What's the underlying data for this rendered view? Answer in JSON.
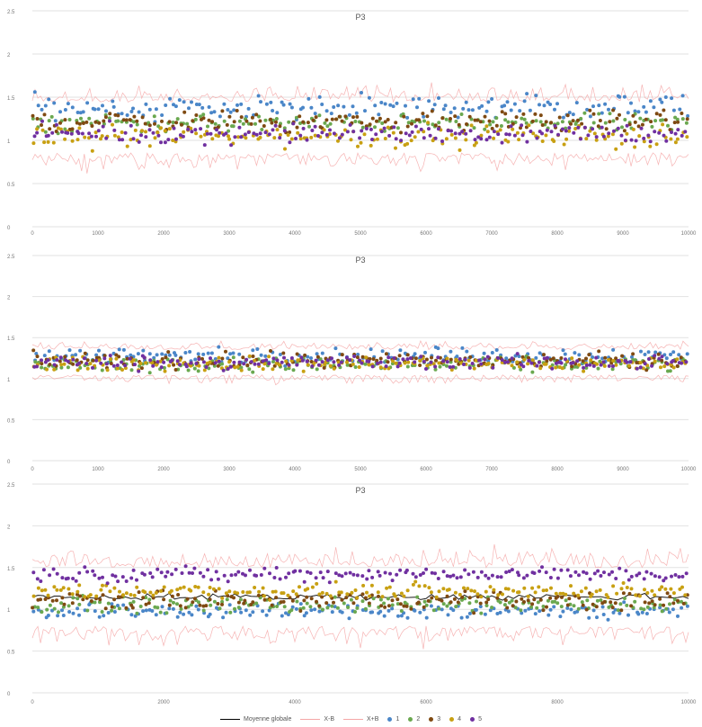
{
  "chart_data": [
    {
      "type": "scatter",
      "title": "P3",
      "ylim": [
        0,
        2.5
      ],
      "xlim": [
        0,
        10000
      ],
      "yticks": [
        "0",
        "0.5",
        "1",
        "1.5",
        "2",
        "2.5"
      ],
      "xticks": [
        "0",
        "1000",
        "2000",
        "3000",
        "4000",
        "5000",
        "6000",
        "7000",
        "8000",
        "9000",
        "10000"
      ],
      "grid": true,
      "series": [
        {
          "name": "X-B",
          "kind": "line",
          "color": "#f4a6a6",
          "center": 1.15,
          "spread": 0.42
        },
        {
          "name": "1",
          "kind": "scatter",
          "color": "#4a86c8",
          "center": 1.38,
          "spread": 0.14
        },
        {
          "name": "2",
          "kind": "scatter",
          "color": "#6aa84f",
          "center": 1.2,
          "spread": 0.09
        },
        {
          "name": "3",
          "kind": "scatter",
          "color": "#7f4a12",
          "center": 1.22,
          "spread": 0.11
        },
        {
          "name": "4",
          "kind": "scatter",
          "color": "#c8a012",
          "center": 1.05,
          "spread": 0.12
        },
        {
          "name": "5",
          "kind": "scatter",
          "color": "#7030a0",
          "center": 1.08,
          "spread": 0.1
        }
      ]
    },
    {
      "type": "scatter",
      "title": "P3",
      "ylim": [
        0,
        2.5
      ],
      "xlim": [
        0,
        10000
      ],
      "yticks": [
        "0",
        "0.5",
        "1",
        "1.5",
        "2",
        "2.5"
      ],
      "xticks": [
        "0",
        "1000",
        "2000",
        "3000",
        "4000",
        "5000",
        "6000",
        "7000",
        "8000",
        "9000",
        "10000"
      ],
      "grid": true,
      "series": [
        {
          "name": "X-B",
          "kind": "line",
          "color": "#f4a6a6",
          "center": 1.2,
          "spread": 0.22
        },
        {
          "name": "1",
          "kind": "scatter",
          "color": "#4a86c8",
          "center": 1.28,
          "spread": 0.09
        },
        {
          "name": "2",
          "kind": "scatter",
          "color": "#6aa84f",
          "center": 1.17,
          "spread": 0.08
        },
        {
          "name": "3",
          "kind": "scatter",
          "color": "#7f4a12",
          "center": 1.22,
          "spread": 0.09
        },
        {
          "name": "4",
          "kind": "scatter",
          "color": "#c8a012",
          "center": 1.18,
          "spread": 0.08
        },
        {
          "name": "5",
          "kind": "scatter",
          "color": "#7030a0",
          "center": 1.2,
          "spread": 0.08
        }
      ]
    },
    {
      "type": "scatter",
      "title": "P3",
      "ylim": [
        0,
        2.5
      ],
      "xlim": [
        0,
        10000
      ],
      "yticks": [
        "0",
        "0.5",
        "1",
        "1.5",
        "2",
        "2.5"
      ],
      "xticks": [
        "0",
        "2000",
        "4000",
        "6000",
        "8000",
        "10000"
      ],
      "grid": true,
      "series": [
        {
          "name": "X-B",
          "kind": "line",
          "color": "#f4a6a6",
          "center": 1.15,
          "spread": 0.5
        },
        {
          "name": "Moyenne globale",
          "kind": "line",
          "color": "#000000",
          "center": 1.15,
          "spread": 0.06
        },
        {
          "name": "1",
          "kind": "scatter",
          "color": "#4a86c8",
          "center": 0.98,
          "spread": 0.09
        },
        {
          "name": "2",
          "kind": "scatter",
          "color": "#6aa84f",
          "center": 1.05,
          "spread": 0.08
        },
        {
          "name": "3",
          "kind": "scatter",
          "color": "#7f4a12",
          "center": 1.1,
          "spread": 0.1
        },
        {
          "name": "4",
          "kind": "scatter",
          "color": "#c8a012",
          "center": 1.22,
          "spread": 0.08
        },
        {
          "name": "5",
          "kind": "scatter",
          "color": "#7030a0",
          "center": 1.42,
          "spread": 0.08
        }
      ]
    }
  ],
  "legend": {
    "items": [
      {
        "label": "Moyenne globale",
        "kind": "line",
        "color": "#000000"
      },
      {
        "label": "X-B",
        "kind": "line",
        "color": "#f4a6a6"
      },
      {
        "label": "X+B",
        "kind": "line",
        "color": "#f4a6a6"
      },
      {
        "label": "1",
        "kind": "dot",
        "color": "#4a86c8"
      },
      {
        "label": "2",
        "kind": "dot",
        "color": "#6aa84f"
      },
      {
        "label": "3",
        "kind": "dot",
        "color": "#7f4a12"
      },
      {
        "label": "4",
        "kind": "dot",
        "color": "#c8a012"
      },
      {
        "label": "5",
        "kind": "dot",
        "color": "#7030a0"
      }
    ]
  }
}
